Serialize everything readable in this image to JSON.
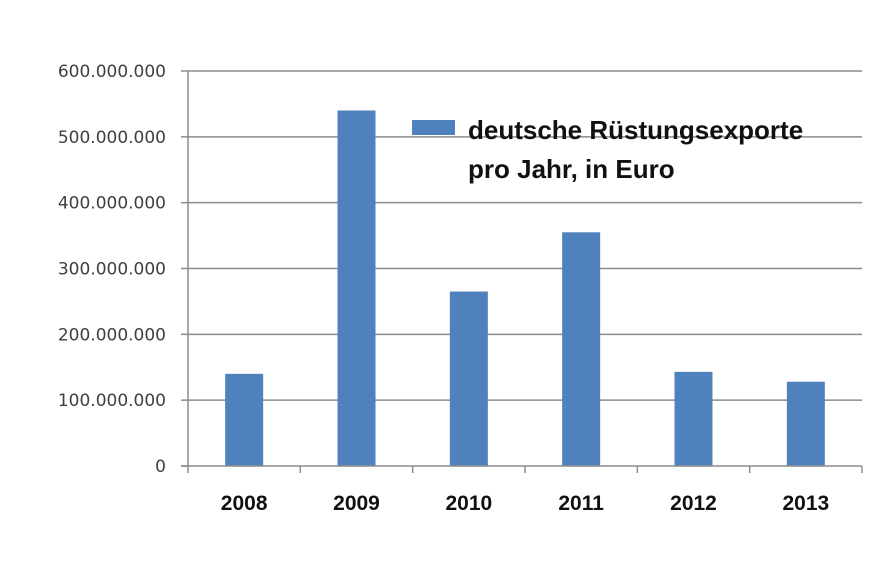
{
  "chart_data": {
    "type": "bar",
    "categories": [
      "2008",
      "2009",
      "2010",
      "2011",
      "2012",
      "2013"
    ],
    "series": [
      {
        "name": "deutsche Rüstungsexporte pro Jahr, in Euro",
        "name_lines": [
          "deutsche Rüstungsexporte",
          "pro Jahr, in Euro"
        ],
        "values": [
          140000000,
          540000000,
          265000000,
          355000000,
          143000000,
          128000000
        ],
        "color": "#4f81bd"
      }
    ],
    "y_ticks": [
      0,
      100000000,
      200000000,
      300000000,
      400000000,
      500000000,
      600000000
    ],
    "y_tick_labels": [
      "0",
      "100.000.000",
      "200.000.000",
      "300.000.000",
      "400.000.000",
      "500.000.000",
      "600.000.000"
    ],
    "ylim": [
      0,
      600000000
    ],
    "grid": true,
    "legend_position": "top-right",
    "title": "",
    "xlabel": "",
    "ylabel": ""
  }
}
